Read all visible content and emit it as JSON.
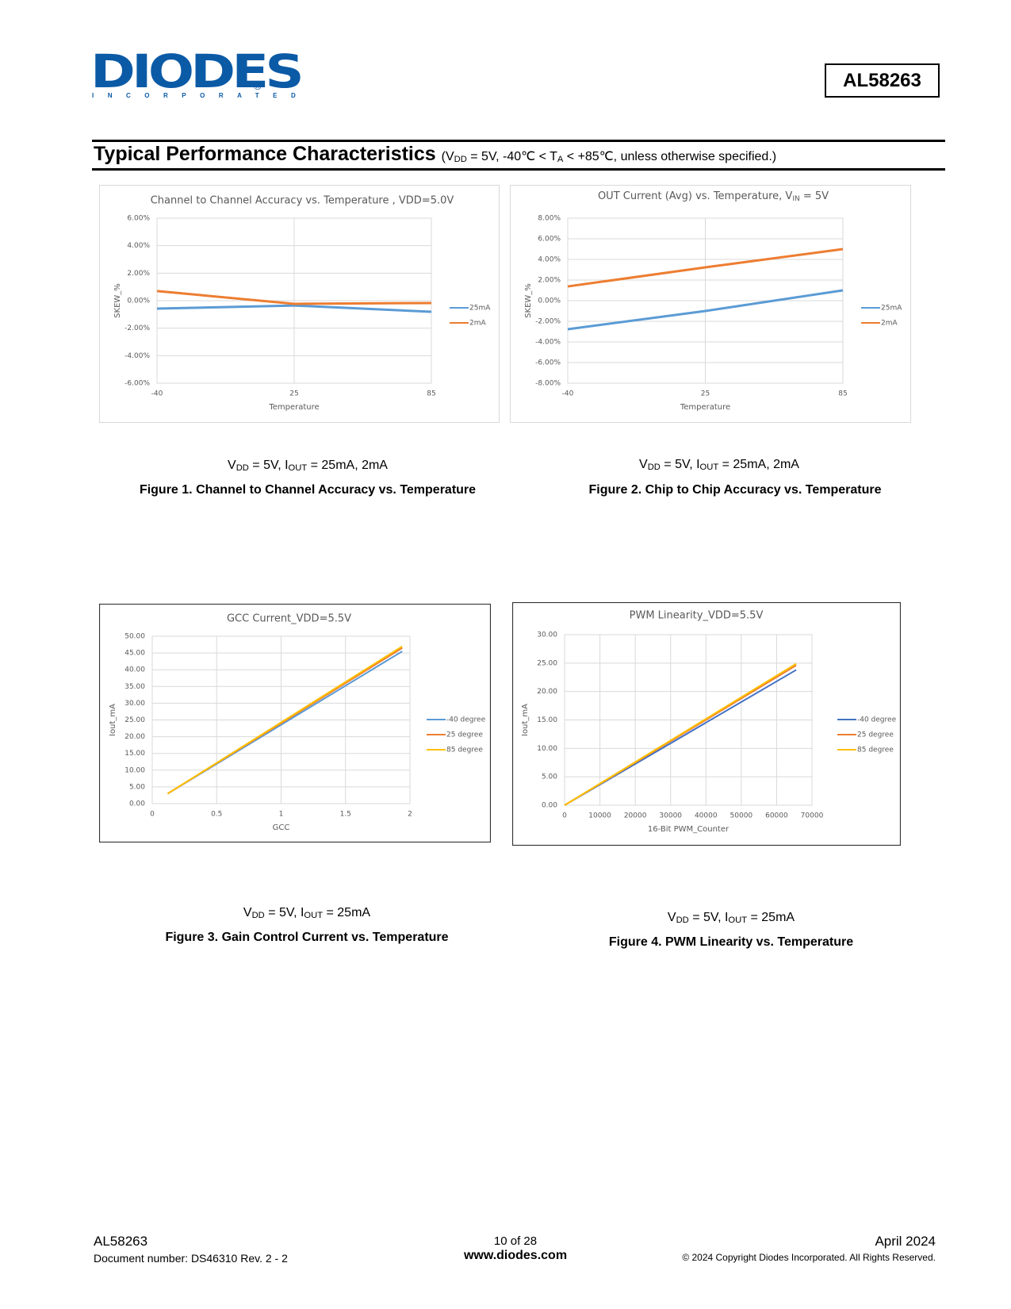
{
  "header": {
    "logo": "DIODES",
    "logo_mark": "®",
    "tagline": "INCORPORATED",
    "part_number": "AL58263"
  },
  "section": {
    "title": "Typical Performance Characteristics",
    "conditions": [
      "(V",
      "DD",
      " = 5V, -40℃ < T",
      "A",
      " < +85℃, unless otherwise specified.)"
    ]
  },
  "figures": [
    {
      "conditions": [
        "V",
        "DD",
        " = 5V, I",
        "OUT",
        " = 25mA, 2mA"
      ],
      "title": "Figure 1. Channel to Channel Accuracy vs. Temperature"
    },
    {
      "conditions": [
        "V",
        "DD",
        " = 5V, I",
        "OUT",
        " = 25mA, 2mA"
      ],
      "title": "Figure 2. Chip to Chip Accuracy vs. Temperature"
    },
    {
      "conditions": [
        "V",
        "DD",
        " = 5V, I",
        "OUT",
        " = 25mA"
      ],
      "title": "Figure 3. Gain Control Current vs. Temperature"
    },
    {
      "conditions": [
        "V",
        "DD",
        " = 5V, I",
        "OUT",
        " = 25mA"
      ],
      "title": "Figure 4. PWM Linearity vs. Temperature"
    }
  ],
  "chart_data": [
    {
      "type": "line",
      "title": "Channel to Channel Accuracy vs. Temperature , VDD=5.0V",
      "x_label": "Temperature",
      "y_label": "SKEW_%",
      "categories": [
        "-40",
        "25",
        "85"
      ],
      "ylim": [
        -6,
        6
      ],
      "yticks": [
        {
          "value": -6,
          "label": "-6.00%"
        },
        {
          "value": -4,
          "label": "-4.00%"
        },
        {
          "value": -2,
          "label": "-2.00%"
        },
        {
          "value": 0,
          "label": "0.00%"
        },
        {
          "value": 2,
          "label": "2.00%"
        },
        {
          "value": 4,
          "label": "4.00%"
        },
        {
          "value": 6,
          "label": "6.00%"
        }
      ],
      "grid": true,
      "series": [
        {
          "name": "25mA",
          "color": "#5b9bd5",
          "values": [
            -0.58,
            -0.35,
            -0.81
          ]
        },
        {
          "name": "2mA",
          "color": "#ed7d31",
          "values": [
            0.7,
            -0.23,
            -0.17
          ]
        }
      ]
    },
    {
      "type": "line",
      "title": [
        "OUT Current (Avg) vs. Temperature, V",
        "IN",
        " = 5V"
      ],
      "x_label": "Temperature",
      "y_label": "SKEW_%",
      "categories": [
        "-40",
        "25",
        "85"
      ],
      "ylim": [
        -8,
        8
      ],
      "yticks": [
        {
          "value": -8,
          "label": "-8.00%"
        },
        {
          "value": -6,
          "label": "-6.00%"
        },
        {
          "value": -4,
          "label": "-4.00%"
        },
        {
          "value": -2,
          "label": "-2.00%"
        },
        {
          "value": 0,
          "label": "0.00%"
        },
        {
          "value": 2,
          "label": "2.00%"
        },
        {
          "value": 4,
          "label": "4.00%"
        },
        {
          "value": 6,
          "label": "6.00%"
        },
        {
          "value": 8,
          "label": "8.00%"
        }
      ],
      "grid": true,
      "series": [
        {
          "name": "25mA",
          "color": "#5b9bd5",
          "values": [
            -2.77,
            -1.0,
            1.0
          ]
        },
        {
          "name": "2mA",
          "color": "#ed7d31",
          "values": [
            1.38,
            3.23,
            5.0
          ]
        }
      ]
    },
    {
      "type": "line",
      "title": "GCC Current_VDD=5.5V",
      "x_label": "GCC",
      "y_label": "Iout_mA",
      "x": [
        0.12,
        1.94
      ],
      "xlim": [
        0,
        2
      ],
      "xticks": [
        0,
        0.5,
        1,
        1.5,
        2
      ],
      "ylim": [
        0,
        50
      ],
      "yticks": [
        {
          "value": 0,
          "label": "0.00"
        },
        {
          "value": 5,
          "label": "5.00"
        },
        {
          "value": 10,
          "label": "10.00"
        },
        {
          "value": 15,
          "label": "15.00"
        },
        {
          "value": 20,
          "label": "20.00"
        },
        {
          "value": 25,
          "label": "25.00"
        },
        {
          "value": 30,
          "label": "30.00"
        },
        {
          "value": 35,
          "label": "35.00"
        },
        {
          "value": 40,
          "label": "40.00"
        },
        {
          "value": 45,
          "label": "45.00"
        },
        {
          "value": 50,
          "label": "50.00"
        }
      ],
      "grid": true,
      "series": [
        {
          "name": "-40 degree",
          "color": "#5b9bd5",
          "values": [
            3,
            45.5
          ]
        },
        {
          "name": "25 degree",
          "color": "#ed7d31",
          "values": [
            3,
            46.5
          ]
        },
        {
          "name": "85 degree",
          "color": "#ffc000",
          "values": [
            3,
            47
          ]
        }
      ]
    },
    {
      "type": "line",
      "title": "PWM Linearity_VDD=5.5V",
      "x_label": "16-Bit PWM_Counter",
      "y_label": "Iout_mA",
      "x": [
        0,
        65535
      ],
      "xlim": [
        0,
        70000
      ],
      "xticks": [
        0,
        10000,
        20000,
        30000,
        40000,
        50000,
        60000,
        70000
      ],
      "ylim": [
        0,
        30
      ],
      "yticks": [
        {
          "value": 0,
          "label": "0.00"
        },
        {
          "value": 5,
          "label": "5.00"
        },
        {
          "value": 10,
          "label": "10.00"
        },
        {
          "value": 15,
          "label": "15.00"
        },
        {
          "value": 20,
          "label": "20.00"
        },
        {
          "value": 25,
          "label": "25.00"
        },
        {
          "value": 30,
          "label": "30.00"
        }
      ],
      "grid": true,
      "series": [
        {
          "name": "-40 degree",
          "color": "#4472c4",
          "values": [
            0,
            23.8
          ]
        },
        {
          "name": "25 degree",
          "color": "#ed7d31",
          "values": [
            0,
            24.6
          ]
        },
        {
          "name": "85 degree",
          "color": "#ffc000",
          "values": [
            0,
            24.9
          ]
        }
      ]
    }
  ],
  "footer": {
    "part_number": "AL58263",
    "document_number": "Document number: DS46310 Rev. 2 - 2",
    "page": "10 of 28",
    "url": "www.diodes.com",
    "date": "April 2024",
    "copyright": "© 2024 Copyright Diodes Incorporated. All Rights Reserved."
  }
}
